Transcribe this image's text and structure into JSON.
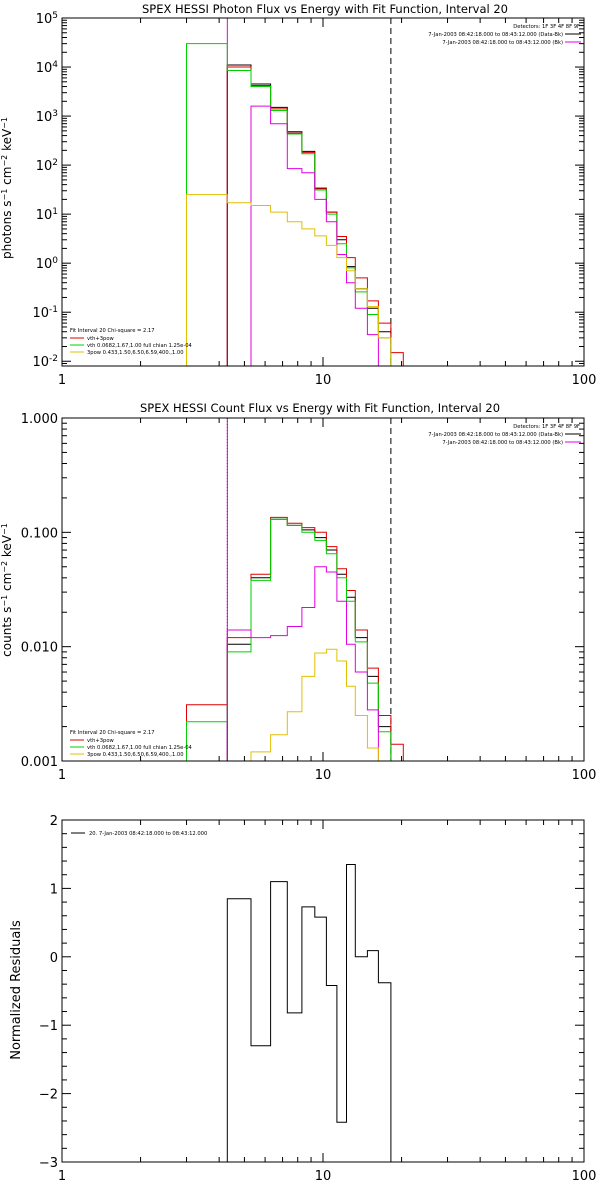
{
  "chart_data": [
    {
      "type": "line",
      "title": "SPEX HESSI Photon Flux vs Energy with Fit Function, Interval 20",
      "ylabel": "photons s-1 cm-2 keV-1",
      "xlabel": "",
      "xscale": "log",
      "yscale": "log",
      "xlim": [
        1,
        100
      ],
      "ylim": [
        0.008,
        100000
      ],
      "x_ticks": [
        "1",
        "10",
        "100"
      ],
      "y_ticks": [
        {
          "base": "10",
          "exp": "-2",
          "value": 0.01
        },
        {
          "base": "10",
          "exp": "-1",
          "value": 0.1
        },
        {
          "base": "10",
          "exp": "0",
          "value": 1
        },
        {
          "base": "10",
          "exp": "1",
          "value": 10
        },
        {
          "base": "10",
          "exp": "2",
          "value": 100
        },
        {
          "base": "10",
          "exp": "3",
          "value": 1000
        },
        {
          "base": "10",
          "exp": "4",
          "value": 10000
        },
        {
          "base": "10",
          "exp": "5",
          "value": 100000
        }
      ],
      "detector_text": "Detectors: 1F 3F 4F 8F 9F",
      "legend_right": [
        {
          "label": "7-Jan-2003 08:42:18.000 to 08:43:12.000 (Data-Bk)",
          "color": "#000000"
        },
        {
          "label": "7-Jan-2003 08:42:18.000 to 08:43:12.000 (Bk)",
          "color": "#e000e0"
        }
      ],
      "fit_header": "Fit Interval 20   Chi-square = 2.17",
      "legend_left": [
        {
          "label": "vth+3pow",
          "color": "#e00000"
        },
        {
          "label": "vth 0.0682,1.67,1.00  full chian 1.25e-04",
          "color": "#00d000"
        },
        {
          "label": "3pow 0.433,1.50,6.50,6.59,400.,1.00",
          "color": "#e0c000"
        }
      ],
      "vlines": [
        {
          "x": 4.3,
          "style": "solid",
          "color": "#e000e0"
        },
        {
          "x": 18.2,
          "style": "dashed",
          "color": "#000000"
        }
      ],
      "bin_edges": [
        3.0,
        4.3,
        5.3,
        6.3,
        7.3,
        8.3,
        9.3,
        10.3,
        11.3,
        12.3,
        13.3,
        14.8,
        16.3,
        18.2,
        20.3
      ],
      "series": [
        {
          "color": "#000000",
          "values": [
            null,
            11000,
            4500,
            1500,
            480,
            190,
            34,
            11,
            3.0,
            0.85,
            0.3,
            0.12,
            0.04,
            null
          ]
        },
        {
          "color": "#e00000",
          "values": [
            null,
            10000,
            4200,
            1400,
            450,
            180,
            33,
            11,
            3.5,
            1.3,
            0.5,
            0.17,
            0.06,
            0.015
          ]
        },
        {
          "color": "#00d000",
          "values": [
            30000,
            8500,
            4000,
            1300,
            430,
            170,
            31,
            10,
            2.5,
            0.8,
            0.26,
            0.09,
            0.03,
            null
          ]
        },
        {
          "color": "#e000e0",
          "values": [
            null,
            null,
            1600,
            700,
            85,
            70,
            20,
            7,
            1.5,
            0.4,
            0.12,
            0.035,
            null,
            null
          ]
        },
        {
          "color": "#e0c000",
          "values": [
            25,
            17,
            15,
            11,
            7,
            5,
            3.6,
            2.3,
            1.3,
            0.7,
            0.3,
            0.13,
            0.03,
            null
          ]
        }
      ]
    },
    {
      "type": "line",
      "title": "SPEX HESSI Count Flux vs Energy with Fit Function, Interval 20",
      "ylabel": "counts s-1 cm-2 keV-1",
      "xscale": "log",
      "yscale": "log",
      "xlim": [
        1,
        100
      ],
      "ylim": [
        0.001,
        1.0
      ],
      "x_ticks": [
        "1",
        "10",
        "100"
      ],
      "y_ticks": [
        {
          "label": "0.001",
          "value": 0.001
        },
        {
          "label": "0.010",
          "value": 0.01
        },
        {
          "label": "0.100",
          "value": 0.1
        },
        {
          "label": "1.000",
          "value": 1.0
        }
      ],
      "detector_text": "Detectors: 1F 3F 4F 8F 9F",
      "legend_right": [
        {
          "label": "7-Jan-2003 08:42:18.000 to 08:43:12.000 (Data-Bk)",
          "color": "#000000"
        },
        {
          "label": "7-Jan-2003 08:42:18.000 to 08:43:12.000 (Bk)",
          "color": "#e000e0"
        }
      ],
      "fit_header": "Fit Interval 20   Chi-square = 2.17",
      "legend_left": [
        {
          "label": "vth+3pow",
          "color": "#e00000"
        },
        {
          "label": "vth 0.0682,1.67,1.00  full chian 1.25e-04",
          "color": "#00d000"
        },
        {
          "label": "3pow 0.433,1.50,6.50,6.59,400.,1.00",
          "color": "#e0c000"
        }
      ],
      "vlines": [
        {
          "x": 4.3,
          "style": "dotted",
          "color": "#000000"
        },
        {
          "x": 4.3,
          "style": "solid",
          "color": "#e000e0"
        },
        {
          "x": 18.2,
          "style": "dashed",
          "color": "#000000"
        }
      ],
      "bin_edges": [
        3.0,
        4.3,
        5.3,
        6.3,
        7.3,
        8.3,
        9.3,
        10.3,
        11.3,
        12.3,
        13.3,
        14.8,
        16.3,
        18.2,
        20.3
      ],
      "series": [
        {
          "color": "#000000",
          "values": [
            null,
            0.0105,
            0.04,
            0.13,
            0.115,
            0.105,
            0.09,
            0.07,
            0.043,
            0.027,
            0.012,
            0.0055,
            0.002,
            null
          ]
        },
        {
          "color": "#e00000",
          "values": [
            0.0031,
            0.012,
            0.043,
            0.135,
            0.12,
            0.11,
            0.1,
            0.075,
            0.048,
            0.031,
            0.014,
            0.0065,
            0.0025,
            0.0014
          ]
        },
        {
          "color": "#00d000",
          "values": [
            0.0022,
            0.009,
            0.038,
            0.13,
            0.115,
            0.1,
            0.085,
            0.065,
            0.04,
            0.025,
            0.011,
            0.0048,
            0.0018,
            null
          ]
        },
        {
          "color": "#e000e0",
          "values": [
            null,
            0.014,
            0.012,
            0.0125,
            0.015,
            0.022,
            0.05,
            0.045,
            0.025,
            0.0105,
            0.006,
            0.0028,
            null,
            null
          ]
        },
        {
          "color": "#e0c000",
          "values": [
            null,
            null,
            0.0012,
            0.0017,
            0.0027,
            0.0055,
            0.0088,
            0.0095,
            0.0075,
            0.0045,
            0.0025,
            0.0013,
            null,
            null
          ]
        }
      ]
    },
    {
      "type": "line",
      "title": "",
      "ylabel": "Normalized Residuals",
      "xscale": "log",
      "yscale": "linear",
      "xlim": [
        1,
        100
      ],
      "ylim": [
        -3,
        2
      ],
      "x_ticks": [
        "1",
        "10",
        "100"
      ],
      "y_ticks": [
        {
          "label": "−3",
          "value": -3
        },
        {
          "label": "−2",
          "value": -2
        },
        {
          "label": "−1",
          "value": -1
        },
        {
          "label": "0",
          "value": 0
        },
        {
          "label": "1",
          "value": 1
        },
        {
          "label": "2",
          "value": 2
        }
      ],
      "legend": [
        {
          "label": "20.  7-Jan-2003 08:42:18.000 to 08:43:12.000",
          "color": "#000000"
        }
      ],
      "bin_edges": [
        4.3,
        5.3,
        6.3,
        7.3,
        8.3,
        9.3,
        10.3,
        11.3,
        12.3,
        13.3,
        14.8,
        16.3,
        18.2
      ],
      "series": [
        {
          "color": "#000000",
          "values": [
            0.85,
            -1.3,
            1.1,
            -0.82,
            0.73,
            0.58,
            -0.42,
            -2.42,
            1.35,
            0.0,
            0.09,
            -0.38
          ]
        }
      ]
    }
  ]
}
